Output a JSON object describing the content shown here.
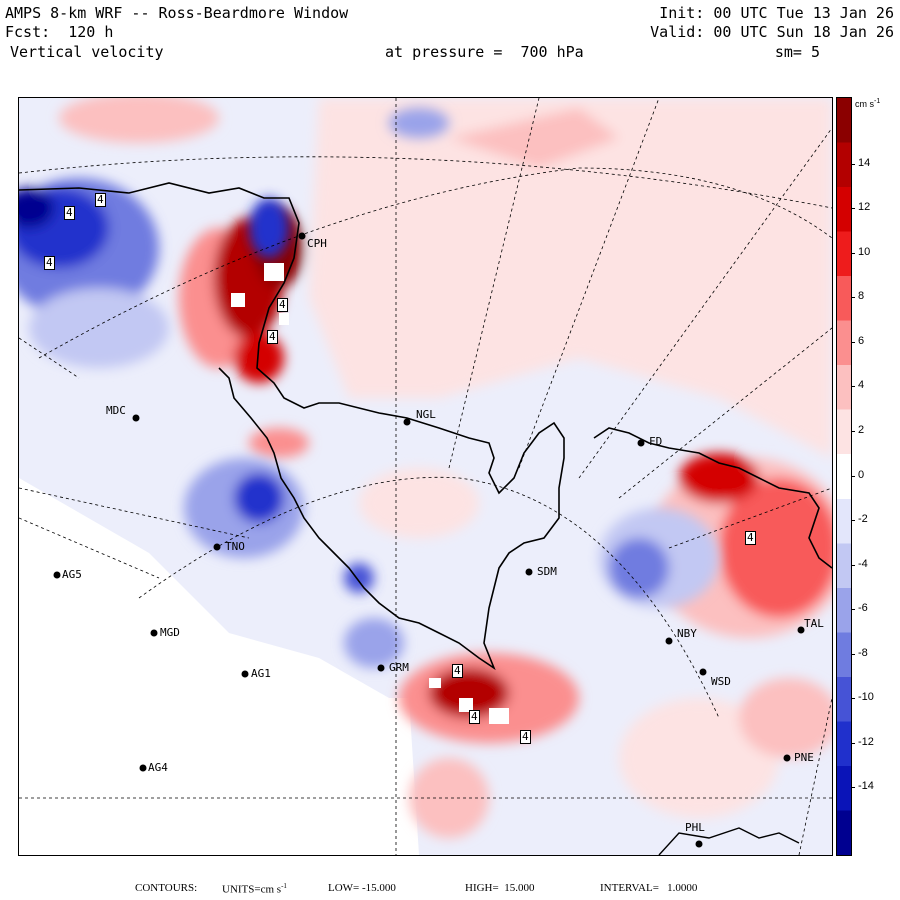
{
  "header": {
    "title": "AMPS 8-km WRF -- Ross-Beardmore Window",
    "forecast": "Fcst:  120 h",
    "variable": "Vertical velocity",
    "level": "at pressure =  700 hPa",
    "init": "Init: 00 UTC Tue 13 Jan 26",
    "valid": "Valid: 00 UTC Sun 18 Jan 26",
    "smoothing": "sm= 5"
  },
  "colorbar": {
    "units": "cm s",
    "units_exp": "-1",
    "ticks": [
      "14",
      "12",
      "10",
      "8",
      "6",
      "4",
      "2",
      "0",
      "-2",
      "-4",
      "-6",
      "-8",
      "-10",
      "-12",
      "-14"
    ],
    "colors": [
      "#8b0000",
      "#b30000",
      "#d40000",
      "#ee1c1c",
      "#f85a5a",
      "#fb8f8f",
      "#fcc0c0",
      "#fde3e3",
      "#ffffff",
      "#e3e6fb",
      "#c2c8f3",
      "#9aa3ea",
      "#6f7ce0",
      "#4653d6",
      "#2030cc",
      "#0a14b8",
      "#000090"
    ]
  },
  "stations": [
    {
      "id": "CPH",
      "label": "CPH"
    },
    {
      "id": "MDC",
      "label": "MDC"
    },
    {
      "id": "NGL",
      "label": "NGL"
    },
    {
      "id": "FD",
      "label": "FD"
    },
    {
      "id": "AG5",
      "label": "AG5"
    },
    {
      "id": "MGD",
      "label": "MGD"
    },
    {
      "id": "AG1",
      "label": "AG1"
    },
    {
      "id": "AG4",
      "label": "AG4"
    },
    {
      "id": "SDM",
      "label": "SDM"
    },
    {
      "id": "GRM",
      "label": "GRM"
    },
    {
      "id": "NBY",
      "label": "NBY"
    },
    {
      "id": "WSD",
      "label": "WSD"
    },
    {
      "id": "PNE",
      "label": "PNE"
    },
    {
      "id": "PHL",
      "label": "PHL"
    },
    {
      "id": "TNO",
      "label": "TNO"
    },
    {
      "id": "TAL",
      "label": "TAL"
    }
  ],
  "contour_labels": [
    "4",
    "4",
    "4",
    "4",
    "4",
    "4",
    "4",
    "4",
    "4"
  ],
  "footer": {
    "contours": "CONTOURS:",
    "units": "UNITS=cm s",
    "units_exp": "-1",
    "low": "LOW= -15.000",
    "high": "HIGH=  15.000",
    "interval": "INTERVAL=   1.0000"
  }
}
